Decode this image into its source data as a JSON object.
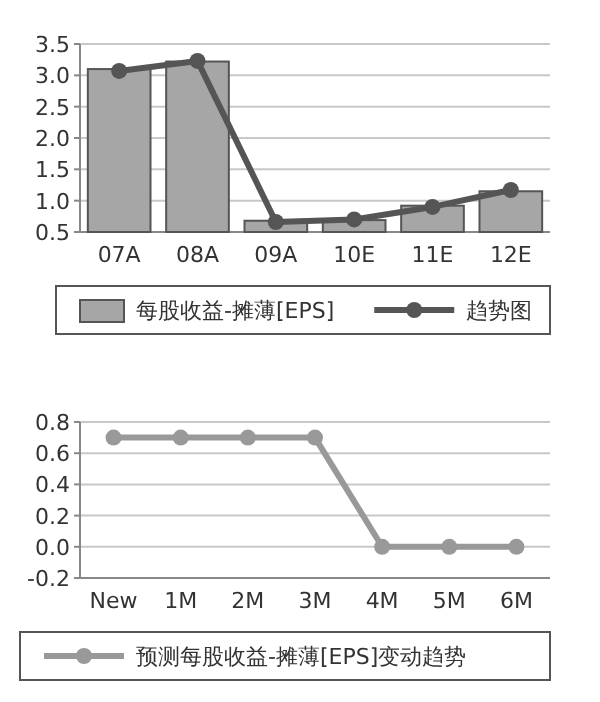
{
  "chart_data": [
    {
      "type": "bar",
      "categories": [
        "07A",
        "08A",
        "09A",
        "10E",
        "11E",
        "12E"
      ],
      "series": [
        {
          "name": "每股收益-摊薄[EPS]",
          "color": "#a6a6a6",
          "values": [
            3.1,
            3.22,
            0.68,
            0.69,
            0.92,
            1.15
          ]
        },
        {
          "name": "趋势图",
          "type": "line",
          "color": "#555555",
          "marker": "circle",
          "values": [
            3.07,
            3.23,
            0.66,
            0.7,
            0.9,
            1.17
          ]
        }
      ],
      "ylim": [
        0.5,
        3.5
      ],
      "yticks": [
        {
          "value": 0.5,
          "label": "0.5"
        },
        {
          "value": 1,
          "label": "1.0"
        },
        1.5,
        {
          "value": 2,
          "label": "2.0"
        },
        2.5,
        {
          "value": 3,
          "label": "3.0"
        },
        3.5
      ],
      "grid": "y",
      "legend": "bottom"
    },
    {
      "type": "line",
      "categories": [
        "New",
        "1M",
        "2M",
        "3M",
        "4M",
        "5M",
        "6M"
      ],
      "series": [
        {
          "name": "预测每股收益-摊薄[EPS]变动趋势",
          "color": "#999999",
          "values": [
            0.7,
            0.7,
            0.7,
            0.7,
            0,
            0,
            0
          ]
        }
      ],
      "marker": "circle",
      "ylim": [
        -0.2,
        0.8
      ],
      "yticks": [
        -0.2,
        {
          "value": 0,
          "label": "0.0"
        },
        0.2,
        0.4,
        0.6,
        0.8
      ],
      "grid": "y",
      "legend": "bottom"
    }
  ]
}
